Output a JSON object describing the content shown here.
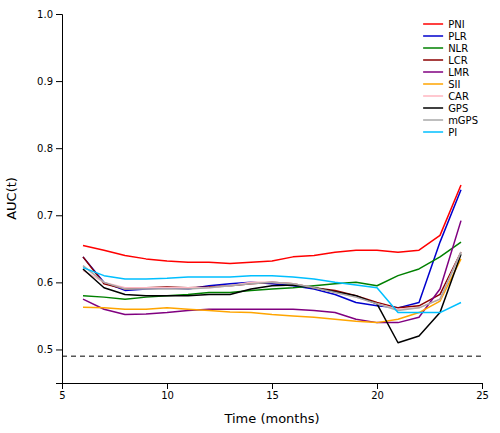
{
  "chart_data": {
    "type": "line",
    "x": [
      6,
      7,
      8,
      9,
      10,
      11,
      12,
      13,
      14,
      15,
      16,
      17,
      18,
      19,
      20,
      21,
      22,
      23,
      24
    ],
    "series": [
      {
        "name": "PNI",
        "color": "#FF0000",
        "values": [
          0.655,
          0.648,
          0.64,
          0.635,
          0.632,
          0.63,
          0.63,
          0.628,
          0.63,
          0.632,
          0.638,
          0.64,
          0.645,
          0.648,
          0.648,
          0.645,
          0.648,
          0.67,
          0.745
        ]
      },
      {
        "name": "PLR",
        "color": "#0000CD",
        "values": [
          0.638,
          0.6,
          0.588,
          0.59,
          0.592,
          0.59,
          0.595,
          0.598,
          0.6,
          0.598,
          0.595,
          0.59,
          0.582,
          0.57,
          0.565,
          0.562,
          0.57,
          0.66,
          0.738
        ]
      },
      {
        "name": "NLR",
        "color": "#008000",
        "values": [
          0.58,
          0.578,
          0.575,
          0.578,
          0.58,
          0.582,
          0.585,
          0.585,
          0.588,
          0.59,
          0.592,
          0.595,
          0.598,
          0.6,
          0.595,
          0.61,
          0.62,
          0.638,
          0.66
        ]
      },
      {
        "name": "LCR",
        "color": "#8B0000",
        "values": [
          0.638,
          0.598,
          0.59,
          0.592,
          0.593,
          0.592,
          0.593,
          0.595,
          0.598,
          0.6,
          0.598,
          0.592,
          0.588,
          0.58,
          0.57,
          0.562,
          0.565,
          0.582,
          0.645
        ]
      },
      {
        "name": "LMR",
        "color": "#800080",
        "values": [
          0.575,
          0.56,
          0.552,
          0.553,
          0.555,
          0.558,
          0.56,
          0.56,
          0.56,
          0.56,
          0.56,
          0.558,
          0.555,
          0.545,
          0.54,
          0.54,
          0.548,
          0.59,
          0.692
        ]
      },
      {
        "name": "SII",
        "color": "#FFA500",
        "values": [
          0.563,
          0.562,
          0.56,
          0.56,
          0.562,
          0.56,
          0.558,
          0.556,
          0.555,
          0.552,
          0.55,
          0.548,
          0.545,
          0.542,
          0.54,
          0.545,
          0.555,
          0.572,
          0.635
        ]
      },
      {
        "name": "CAR",
        "color": "#FFB6C1",
        "values": [
          0.618,
          0.6,
          0.592,
          0.592,
          0.592,
          0.592,
          0.592,
          0.595,
          0.6,
          0.6,
          0.598,
          0.592,
          0.585,
          0.578,
          0.568,
          0.56,
          0.562,
          0.575,
          0.645
        ]
      },
      {
        "name": "GPS",
        "color": "#000000",
        "values": [
          0.62,
          0.592,
          0.582,
          0.58,
          0.58,
          0.58,
          0.582,
          0.582,
          0.59,
          0.595,
          0.596,
          0.592,
          0.586,
          0.58,
          0.568,
          0.51,
          0.52,
          0.555,
          0.642
        ]
      },
      {
        "name": "mGPS",
        "color": "#A9A9A9",
        "values": [
          0.625,
          0.6,
          0.59,
          0.59,
          0.59,
          0.59,
          0.592,
          0.595,
          0.598,
          0.6,
          0.598,
          0.592,
          0.585,
          0.578,
          0.568,
          0.558,
          0.562,
          0.575,
          0.645
        ]
      },
      {
        "name": "PI",
        "color": "#00BFFF",
        "values": [
          0.622,
          0.61,
          0.605,
          0.605,
          0.606,
          0.608,
          0.608,
          0.608,
          0.61,
          0.61,
          0.608,
          0.605,
          0.6,
          0.596,
          0.592,
          0.555,
          0.555,
          0.555,
          0.57
        ]
      }
    ],
    "ref_line_y": 0.49,
    "xlim": [
      5,
      25
    ],
    "ylim": [
      0.45,
      1.0
    ],
    "xticks": [
      5,
      10,
      15,
      20,
      25
    ],
    "yticks": [
      0.5,
      0.6,
      0.7,
      0.8,
      0.9,
      {
        "value": 1.0,
        "label": "1.0"
      }
    ],
    "xlabel": "Time (months)",
    "ylabel": "AUC(t)",
    "legend": "upper right"
  }
}
